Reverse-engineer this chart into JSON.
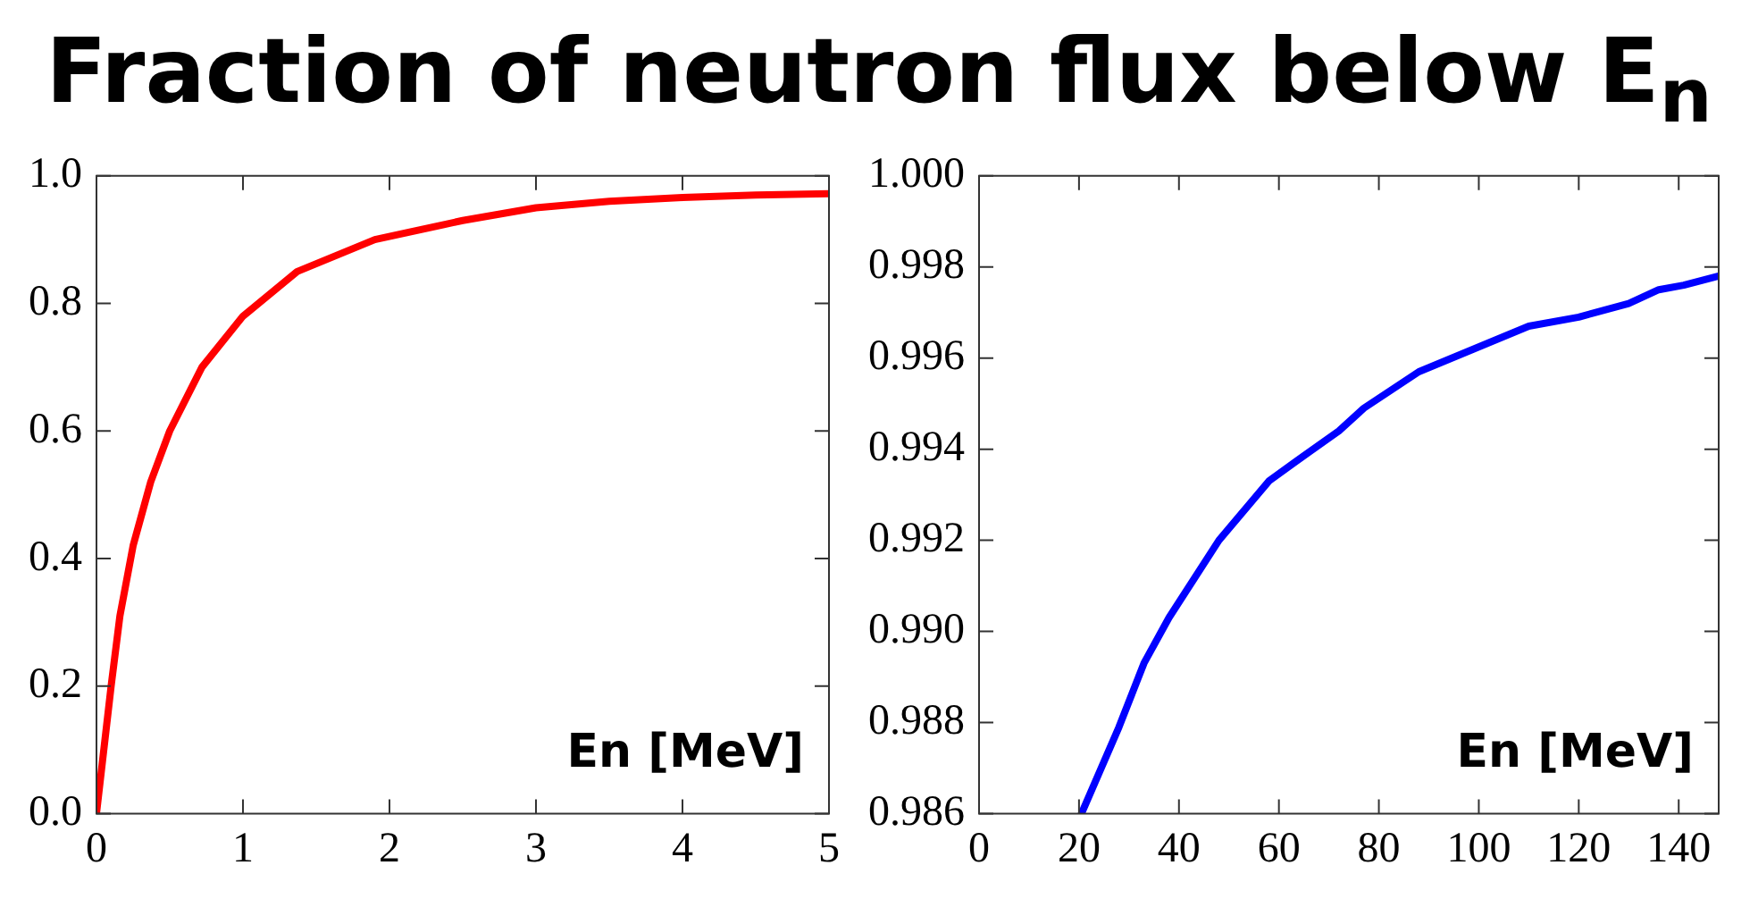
{
  "chart_data": [
    {
      "type": "line",
      "title": "Fraction of neutron flux below E$_{n}$",
      "xlabel": "En [MeV]",
      "xlim": [
        0,
        5
      ],
      "xticks": [
        0,
        1,
        2,
        3,
        4,
        5
      ],
      "ylim": [
        0,
        1
      ],
      "yticks": [
        {
          "value": 0,
          "label": "0.0"
        },
        0.2,
        0.4,
        0.6,
        0.8,
        {
          "value": 1,
          "label": "1.0"
        }
      ],
      "grid": false,
      "legend": false,
      "marker": "none",
      "line_style": "solid",
      "series": [
        {
          "color": "#ff0000",
          "x": [
            0,
            0.05,
            0.1,
            0.16,
            0.25,
            0.37,
            0.5,
            0.72,
            1.0,
            1.37,
            1.9,
            2.5,
            3,
            3.5,
            4,
            4.5,
            5
          ],
          "values": [
            0,
            0.1,
            0.2,
            0.31,
            0.42,
            0.52,
            0.6,
            0.7,
            0.78,
            0.85,
            0.9,
            0.93,
            0.95,
            0.96,
            0.966,
            0.97,
            0.972
          ]
        }
      ]
    },
    {
      "type": "line",
      "xlabel": "En [MeV]",
      "xlim": [
        0,
        148
      ],
      "xticks": [
        0,
        20,
        40,
        60,
        80,
        100,
        120,
        140
      ],
      "ylim": [
        0.986,
        1.0
      ],
      "yticks": [
        0.986,
        0.988,
        {
          "value": 0.99,
          "label": "0.990"
        },
        0.992,
        0.994,
        0.996,
        0.998,
        {
          "value": 1.0,
          "label": "1.000"
        }
      ],
      "grid": false,
      "legend": false,
      "marker": "none",
      "line_style": "solid",
      "series": [
        {
          "color": "#0000ff",
          "x": [
            20.5,
            28,
            33,
            38,
            48,
            58,
            63,
            72,
            77,
            88,
            99,
            110,
            120,
            130,
            136,
            141,
            148
          ],
          "values": [
            0.986,
            0.9879,
            0.9893,
            0.9903,
            0.992,
            0.9933,
            0.9937,
            0.9944,
            0.9949,
            0.9957,
            0.9962,
            0.9967,
            0.9969,
            0.9972,
            0.9975,
            0.9976,
            0.9978
          ]
        }
      ]
    }
  ]
}
